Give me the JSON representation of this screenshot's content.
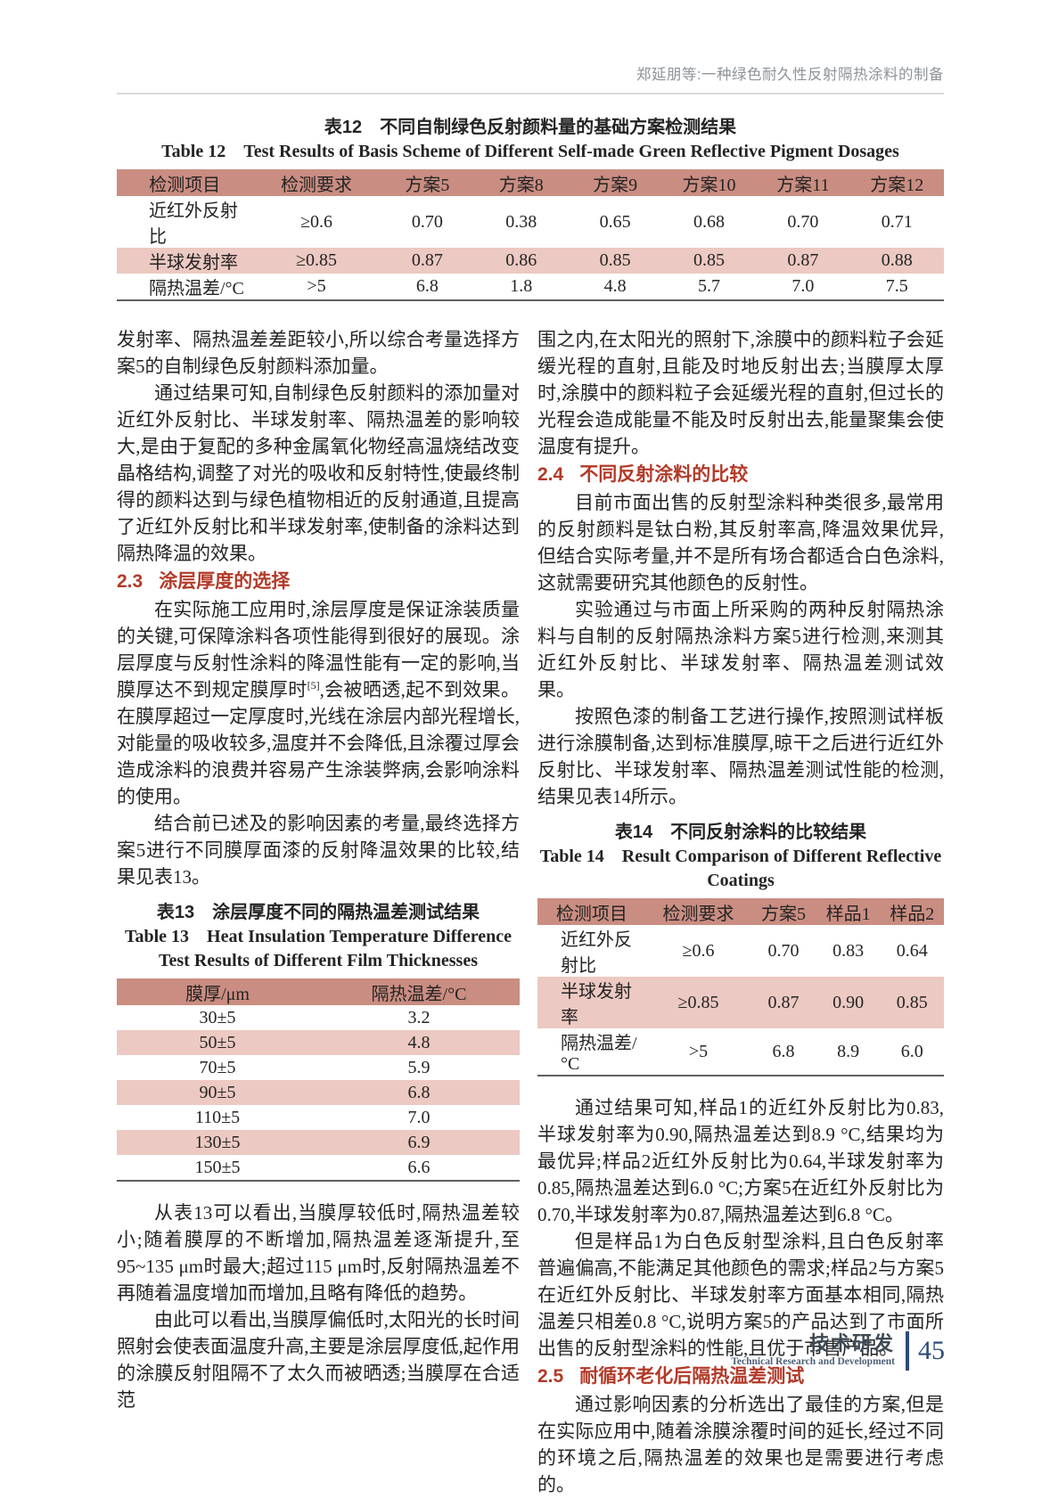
{
  "running_head": "郑延朋等:一种绿色耐久性反射隔热涂料的制备",
  "colors": {
    "accent_red": "#b23a29",
    "table_header_bg": "#ca8d81",
    "table_row_alt_bg": "#ecc9c2",
    "footer_navy": "#2d4c77",
    "running_head_gray": "#8d9399"
  },
  "table12": {
    "title_zh": "表12　不同自制绿色反射颜料量的基础方案检测结果",
    "title_en": "Table 12　Test Results of Basis Scheme of Different Self-made Green Reflective Pigment Dosages",
    "headers": [
      "检测项目",
      "检测要求",
      "方案5",
      "方案8",
      "方案9",
      "方案10",
      "方案11",
      "方案12"
    ],
    "rows": [
      [
        "近红外反射比",
        "≥0.6",
        "0.70",
        "0.38",
        "0.65",
        "0.68",
        "0.70",
        "0.71"
      ],
      [
        "半球发射率",
        "≥0.85",
        "0.87",
        "0.86",
        "0.85",
        "0.85",
        "0.87",
        "0.88"
      ],
      [
        "隔热温差/°C",
        ">5",
        "6.8",
        "1.8",
        "4.8",
        "5.7",
        "7.0",
        "7.5"
      ]
    ]
  },
  "table13": {
    "title_zh": "表13　涂层厚度不同的隔热温差测试结果",
    "title_en": "Table 13　Heat Insulation Temperature Difference Test Results of Different Film Thicknesses",
    "headers": [
      "膜厚/μm",
      "隔热温差/°C"
    ],
    "rows": [
      [
        "30±5",
        "3.2"
      ],
      [
        "50±5",
        "4.8"
      ],
      [
        "70±5",
        "5.9"
      ],
      [
        "90±5",
        "6.8"
      ],
      [
        "110±5",
        "7.0"
      ],
      [
        "130±5",
        "6.9"
      ],
      [
        "150±5",
        "6.6"
      ]
    ]
  },
  "table14": {
    "title_zh": "表14　不同反射涂料的比较结果",
    "title_en": "Table 14　Result Comparison of Different Reflective Coatings",
    "headers": [
      "检测项目",
      "检测要求",
      "方案5",
      "样品1",
      "样品2"
    ],
    "rows": [
      [
        "近红外反射比",
        "≥0.6",
        "0.70",
        "0.83",
        "0.64"
      ],
      [
        "半球发射率",
        "≥0.85",
        "0.87",
        "0.90",
        "0.85"
      ],
      [
        "隔热温差/°C",
        ">5",
        "6.8",
        "8.9",
        "6.0"
      ]
    ]
  },
  "left": {
    "p_cont": "发射率、隔热温差差距较小,所以综合考量选择方案5的自制绿色反射颜料添加量。",
    "p_results": "通过结果可知,自制绿色反射颜料的添加量对近红外反射比、半球发射率、隔热温差的影响较大,是由于复配的多种金属氧化物经高温烧结改变晶格结构,调整了对光的吸收和反射特性,使最终制得的颜料达到与绿色植物相近的反射通道,且提高了近红外反射比和半球发射率,使制备的涂料达到隔热降温的效果。",
    "h23": {
      "number": "2.3",
      "label": "涂层厚度的选择"
    },
    "p_thickness_a": "在实际施工应用时,涂层厚度是保证涂装质量的关键,可保障涂料各项性能得到很好的展现。涂层厚度与反射性涂料的降温性能有一定的影响,当膜厚达不到规定膜厚时",
    "p_thickness_ref": "[5]",
    "p_thickness_b": ",会被晒透,起不到效果。在膜厚超过一定厚度时,光线在涂层内部光程增长,对能量的吸收较多,温度并不会降低,且涂覆过厚会造成涂料的浪费并容易产生涂装弊病,会影响涂料的使用。",
    "p_choose": "结合前已述及的影响因素的考量,最终选择方案5进行不同膜厚面漆的反射降温效果的比较,结果见表13。",
    "p_t13_analysis": "从表13可以看出,当膜厚较低时,隔热温差较小;随着膜厚的不断增加,隔热温差逐渐提升,至95~135 μm时最大;超过115 μm时,反射隔热温差不再随着温度增加而增加,且略有降低的趋势。",
    "p_low_film": "由此可以看出,当膜厚偏低时,太阳光的长时间照射会使表面温度升高,主要是涂层厚度低,起作用的涂膜反射阻隔不了太久而被晒透;当膜厚在合适范"
  },
  "right": {
    "p_cont": "围之内,在太阳光的照射下,涂膜中的颜料粒子会延缓光程的直射,且能及时地反射出去;当膜厚太厚时,涂膜中的颜料粒子会延缓光程的直射,但过长的光程会造成能量不能及时反射出去,能量聚集会使温度有提升。",
    "h24": {
      "number": "2.4",
      "label": "不同反射涂料的比较"
    },
    "p_market": "目前市面出售的反射型涂料种类很多,最常用的反射颜料是钛白粉,其反射率高,降温效果优异,但结合实际考量,并不是所有场合都适合白色涂料,这就需要研究其他颜色的反射性。",
    "p_experiment": "实验通过与市面上所采购的两种反射隔热涂料与自制的反射隔热涂料方案5进行检测,来测其近红外反射比、半球发射率、隔热温差测试效果。",
    "p_procedure": "按照色漆的制备工艺进行操作,按照测试样板进行涂膜制备,达到标准膜厚,晾干之后进行近红外反射比、半球发射率、隔热温差测试性能的检测,结果见表14所示。",
    "p_t14_analysis": "通过结果可知,样品1的近红外反射比为0.83,半球发射率为0.90,隔热温差达到8.9 °C,结果均为最优异;样品2近红外反射比为0.64,半球发射率为0.85,隔热温差达到6.0 °C;方案5在近红外反射比为0.70,半球发射率为0.87,隔热温差达到6.8 °C。",
    "p_compare": "但是样品1为白色反射型涂料,且白色反射率普遍偏高,不能满足其他颜色的需求;样品2与方案5在近红外反射比、半球发射率方面基本相同,隔热温差只相差0.8 °C,说明方案5的产品达到了市面所出售的反射型涂料的性能,且优于市售产品。",
    "h25": {
      "number": "2.5",
      "label": "耐循环老化后隔热温差测试"
    },
    "p_aging": "通过影响因素的分析选出了最佳的方案,但是在实际应用中,随着涂膜涂覆时间的延长,经过不同的环境之后,隔热温差的效果也是需要进行考虑的。"
  },
  "footer": {
    "zh": "技术研发",
    "en": "Technical Research and Development",
    "page_number": "45"
  }
}
